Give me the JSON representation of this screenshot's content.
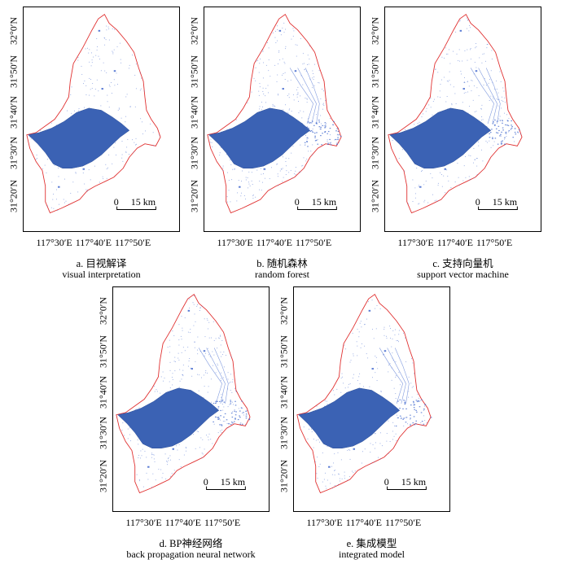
{
  "axes": {
    "lat_labels": [
      "32°0′N",
      "31°50′N",
      "31°40′N",
      "31°30′N",
      "31°20′N"
    ],
    "lon_labels": [
      "117°30′E",
      "117°40′E",
      "117°50′E"
    ]
  },
  "scalebar": {
    "zero": "0",
    "distance": "15 km"
  },
  "colors": {
    "boundary": "#e03030",
    "lake": "#3b62b4",
    "water": "#4a6fd0",
    "frame": "#000000"
  },
  "panels": [
    {
      "id": "a",
      "caption_cn": "a. 目视解译",
      "caption_en": "visual interpretation"
    },
    {
      "id": "b",
      "caption_cn": "b. 随机森林",
      "caption_en": "random forest"
    },
    {
      "id": "c",
      "caption_cn": "c. 支持向量机",
      "caption_en": "support vector machine"
    },
    {
      "id": "d",
      "caption_cn": "d. BP神经网络",
      "caption_en": "back propagation neural network"
    },
    {
      "id": "e",
      "caption_cn": "e. 集成模型",
      "caption_en": "integrated model"
    }
  ]
}
